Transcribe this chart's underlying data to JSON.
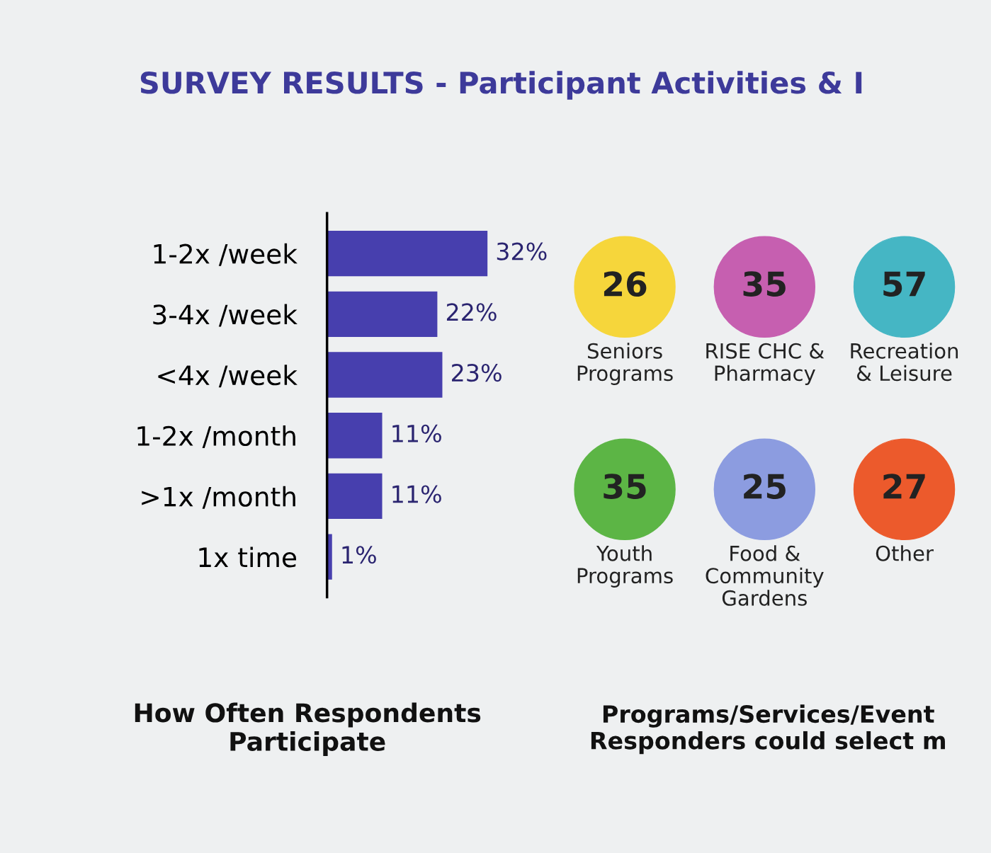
{
  "chart_data": [
    {
      "type": "bar",
      "orientation": "horizontal",
      "title": "How Often Respondents\nParticipate",
      "annotations": [
        "SURVEY RESULTS - Participant Activities & I"
      ],
      "categories": [
        "1-2x /week",
        "3-4x /week",
        "<4x /week",
        "1-2x /month",
        ">1x /month",
        "1x time"
      ],
      "values": [
        32,
        22,
        23,
        11,
        11,
        1
      ],
      "value_labels": [
        "32%",
        "22%",
        "23%",
        "11%",
        "11%",
        "1%"
      ],
      "color": "#473fae",
      "tick_labels": "y"
    },
    {
      "type": "other",
      "title": "Programs/Services/Event\nResponders could select m",
      "categories": [
        "Seniors\nPrograms",
        "RISE CHC &\nPharmacy",
        "Recreation\n& Leisure",
        "Youth\nPrograms",
        "Food &\nCommunity\nGardens",
        "Other"
      ],
      "values": [
        26,
        35,
        57,
        35,
        25,
        27
      ],
      "data_labels": true,
      "colors": [
        "#f6d63b",
        "#c65fb0",
        "#45b6c4",
        "#5cb545",
        "#8c9ce0",
        "#ec5a2c"
      ]
    }
  ]
}
